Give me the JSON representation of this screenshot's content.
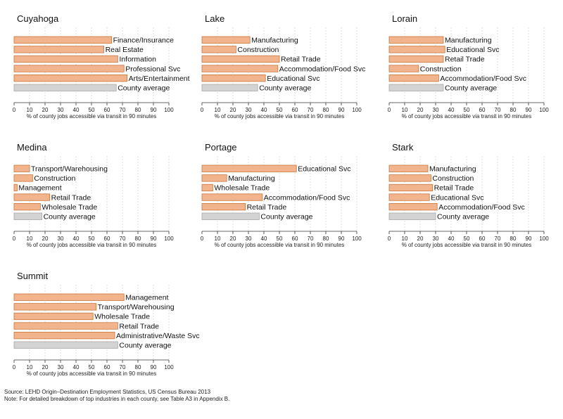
{
  "chart_data": [
    {
      "type": "bar",
      "orientation": "horizontal",
      "title": "Cuyahoga",
      "categories": [
        "Finance/Insurance",
        "Real Estate",
        "Information",
        "Professional Svc",
        "Arts/Entertainment",
        "County average"
      ],
      "values": [
        63,
        58,
        67,
        71,
        73,
        66
      ],
      "xlabel": "% of county jobs accessible via transit in 90 minutes",
      "xlim": [
        0,
        100
      ],
      "xticks": [
        0,
        10,
        20,
        30,
        40,
        50,
        60,
        70,
        80,
        90,
        100
      ],
      "grid": true
    },
    {
      "type": "bar",
      "orientation": "horizontal",
      "title": "Lake",
      "categories": [
        "Manufacturing",
        "Construction",
        "Retail Trade",
        "Accommodation/Food Svc",
        "Educational Svc",
        "County average"
      ],
      "values": [
        31,
        22,
        50,
        49,
        41,
        36
      ],
      "xlabel": "% of county jobs accessible via transit in 90 minutes",
      "xlim": [
        0,
        100
      ],
      "xticks": [
        0,
        10,
        20,
        30,
        40,
        50,
        60,
        70,
        80,
        90,
        100
      ],
      "grid": true
    },
    {
      "type": "bar",
      "orientation": "horizontal",
      "title": "Lorain",
      "categories": [
        "Manufacturing",
        "Educational Svc",
        "Retail Trade",
        "Construction",
        "Accommodation/Food Svc",
        "County average"
      ],
      "values": [
        35,
        36,
        35,
        19,
        32,
        35
      ],
      "xlabel": "% of county jobs accessible via transit in 90 minutes",
      "xlim": [
        0,
        100
      ],
      "xticks": [
        0,
        10,
        20,
        30,
        40,
        50,
        60,
        70,
        80,
        90,
        100
      ],
      "grid": true
    },
    {
      "type": "bar",
      "orientation": "horizontal",
      "title": "Medina",
      "categories": [
        "Transport/Warehousing",
        "Construction",
        "Management",
        "Retail Trade",
        "Wholesale Trade",
        "County average"
      ],
      "values": [
        10,
        12,
        2,
        23,
        17,
        18
      ],
      "xlabel": "% of county jobs accessible via transit in 90 minutes",
      "xlim": [
        0,
        100
      ],
      "xticks": [
        0,
        10,
        20,
        30,
        40,
        50,
        60,
        70,
        80,
        90,
        100
      ],
      "grid": true
    },
    {
      "type": "bar",
      "orientation": "horizontal",
      "title": "Portage",
      "categories": [
        "Educational Svc",
        "Manufacturing",
        "Wholesale Trade",
        "Accommodation/Food Svc",
        "Retail Trade",
        "County average"
      ],
      "values": [
        61,
        16,
        7,
        39,
        28,
        37
      ],
      "xlabel": "% of county jobs accessible via transit in 90 minutes",
      "xlim": [
        0,
        100
      ],
      "xticks": [
        0,
        10,
        20,
        30,
        40,
        50,
        60,
        70,
        80,
        90,
        100
      ],
      "grid": true
    },
    {
      "type": "bar",
      "orientation": "horizontal",
      "title": "Stark",
      "categories": [
        "Manufacturing",
        "Construction",
        "Retail Trade",
        "Educational Svc",
        "Accommodation/Food Svc",
        "County average"
      ],
      "values": [
        25,
        27,
        28,
        26,
        31,
        30
      ],
      "xlabel": "% of county jobs accessible via transit in 90 minutes",
      "xlim": [
        0,
        100
      ],
      "xticks": [
        0,
        10,
        20,
        30,
        40,
        50,
        60,
        70,
        80,
        90,
        100
      ],
      "grid": true
    },
    {
      "type": "bar",
      "orientation": "horizontal",
      "title": "Summit",
      "categories": [
        "Management",
        "Transport/Warehousing",
        "Wholesale Trade",
        "Retail Trade",
        "Administrative/Waste Svc",
        "County average"
      ],
      "values": [
        71,
        53,
        51,
        67,
        65,
        67
      ],
      "xlabel": "% of county jobs accessible via transit in 90 minutes",
      "xlim": [
        0,
        100
      ],
      "xticks": [
        0,
        10,
        20,
        30,
        40,
        50,
        60,
        70,
        80,
        90,
        100
      ],
      "grid": true
    }
  ],
  "colors": {
    "industry_bar_fill": "#f2b48c",
    "industry_bar_stroke": "#c8763f",
    "average_bar_fill": "#d3d3d3",
    "average_bar_stroke": "#a8a8a8",
    "gridline": "#cfcfcf"
  },
  "notes": {
    "source": "Source: LEHD Origin–Destination Employment Statistics, US Census Bureau 2013",
    "note": "Note: For detailed breakdown of top industries in each county, see Table A3 in Appendix B."
  }
}
